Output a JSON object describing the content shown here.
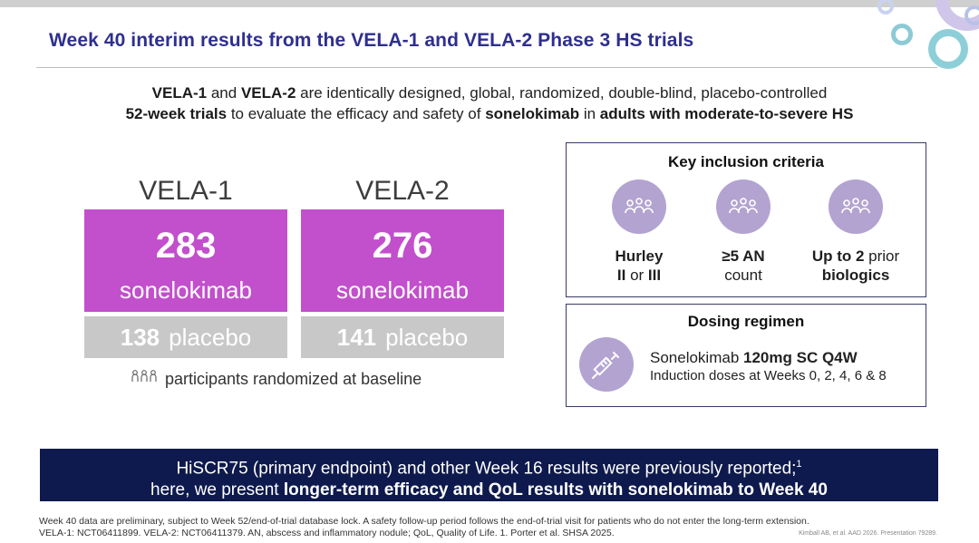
{
  "header": {
    "title": "Week 40 interim results from the VELA-1 and VELA-2 Phase 3 HS trials"
  },
  "intro": {
    "line1": {
      "t1": "VELA-1",
      "t2": " and ",
      "t3": "VELA-2",
      "t4": " are identically designed, global, randomized, double-blind, placebo-controlled"
    },
    "line2": {
      "t1": "52-week trials",
      "t2": " to evaluate the efficacy and safety of ",
      "t3": "sonelokimab",
      "t4": " in ",
      "t5": "adults with moderate-to-severe HS"
    }
  },
  "trials": [
    {
      "name": "VELA-1",
      "drug_n": "283",
      "drug_label": "sonelokimab",
      "placebo_n": "138",
      "placebo_label": "placebo"
    },
    {
      "name": "VELA-2",
      "drug_n": "276",
      "drug_label": "sonelokimab",
      "placebo_n": "141",
      "placebo_label": "placebo"
    }
  ],
  "baseline_note": "participants randomized at baseline",
  "inclusion": {
    "title": "Key inclusion criteria",
    "items": [
      {
        "a": "Hurley",
        "b": "II",
        "c": " or ",
        "d": "III"
      },
      {
        "a": "≥5 AN",
        "b": "count"
      },
      {
        "a": "Up to 2",
        "b": " prior",
        "c": "biologics"
      }
    ]
  },
  "dosing": {
    "title": "Dosing regimen",
    "line1_a": "Sonelokimab ",
    "line1_b": "120mg SC Q4W",
    "line2": "Induction doses at Weeks 0, 2, 4, 6 & 8"
  },
  "banner": {
    "line1": "HiSCR75 (primary endpoint) and other Week 16 results were previously reported;",
    "sup": "1",
    "line2_a": "here, we present ",
    "line2_b": "longer-term efficacy and QoL results with sonelokimab to Week 40"
  },
  "footnote": {
    "line1": "Week 40 data are preliminary, subject to Week 52/end-of-trial database lock. A safety follow-up period follows the end-of-trial visit for patients who do not enter the long-term extension.",
    "line2": "VELA-1: NCT06411899. VELA-2: NCT06411379. AN, abscess and inflammatory nodule; QoL, Quality of Life. 1. Porter et al. SHSA 2025."
  },
  "citation": "Kimball AB, et al. AAD 2026. Presentation 79289.",
  "icons": {
    "people": "people-group-icon",
    "syringe": "syringe-icon"
  },
  "colors": {
    "title": "#2e2f8f",
    "drug_box": "#c24fcc",
    "placebo_box": "#c8c8c8",
    "icon_circle": "#b3a3d1",
    "banner": "#0e1a4d"
  }
}
